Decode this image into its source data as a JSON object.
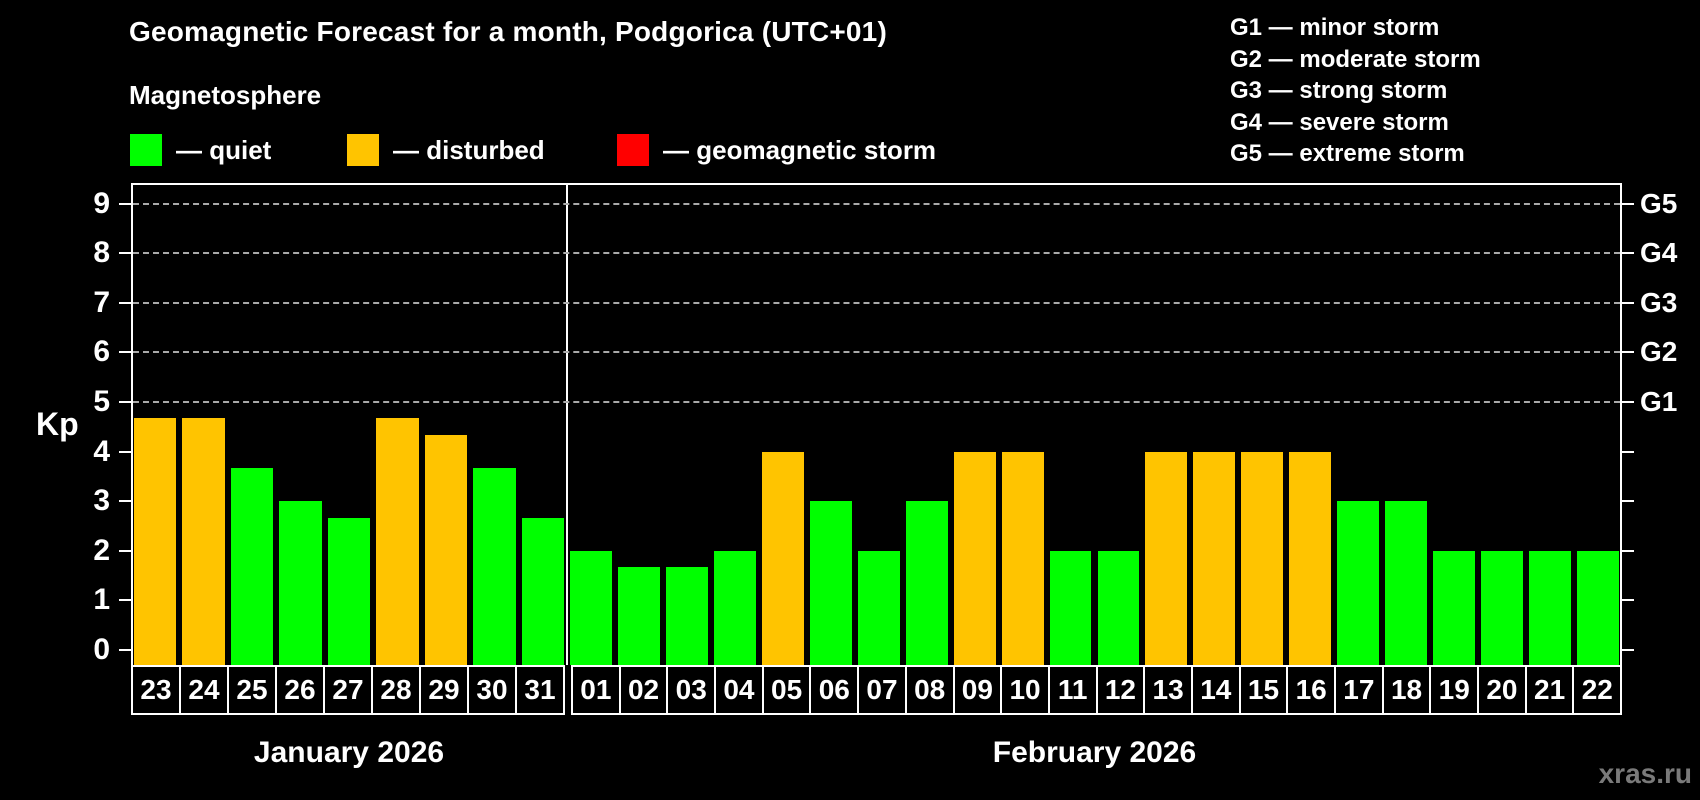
{
  "title": "Geomagnetic Forecast for a month, Podgorica (UTC+01)",
  "subtitle": "Magnetosphere",
  "legend": {
    "items": [
      {
        "name": "quiet",
        "label": "— quiet",
        "color": "#00FF00"
      },
      {
        "name": "disturbed",
        "label": "— disturbed",
        "color": "#FFC400"
      },
      {
        "name": "storm",
        "label": "— geomagnetic storm",
        "color": "#FF0000"
      }
    ]
  },
  "g_scale": {
    "items": [
      "G1 — minor storm",
      "G2 — moderate storm",
      "G3 — strong storm",
      "G4 — severe storm",
      "G5 — extreme storm"
    ]
  },
  "watermark": "xras.ru",
  "chart_data": {
    "type": "bar",
    "ylabel": "Kp",
    "ylim": [
      0,
      9.7
    ],
    "yticks": [
      0,
      1,
      2,
      3,
      4,
      5,
      6,
      7,
      8,
      9
    ],
    "grid_kp": [
      5,
      6,
      7,
      8,
      9
    ],
    "grid_on": true,
    "right_axis_labels": [
      {
        "kp": 5,
        "label": "G1"
      },
      {
        "kp": 6,
        "label": "G2"
      },
      {
        "kp": 7,
        "label": "G3"
      },
      {
        "kp": 8,
        "label": "G4"
      },
      {
        "kp": 9,
        "label": "G5"
      }
    ],
    "colors": {
      "quiet": "#00FF00",
      "disturbed": "#FFC400",
      "storm": "#FF0000"
    },
    "groups": [
      {
        "label": "January 2026",
        "days": [
          {
            "day": "23",
            "kp": 4.67,
            "status": "disturbed"
          },
          {
            "day": "24",
            "kp": 4.67,
            "status": "disturbed"
          },
          {
            "day": "25",
            "kp": 3.67,
            "status": "quiet"
          },
          {
            "day": "26",
            "kp": 3.0,
            "status": "quiet"
          },
          {
            "day": "27",
            "kp": 2.67,
            "status": "quiet"
          },
          {
            "day": "28",
            "kp": 4.67,
            "status": "disturbed"
          },
          {
            "day": "29",
            "kp": 4.33,
            "status": "disturbed"
          },
          {
            "day": "30",
            "kp": 3.67,
            "status": "quiet"
          },
          {
            "day": "31",
            "kp": 2.67,
            "status": "quiet"
          }
        ]
      },
      {
        "label": "February 2026",
        "days": [
          {
            "day": "01",
            "kp": 2.0,
            "status": "quiet"
          },
          {
            "day": "02",
            "kp": 1.67,
            "status": "quiet"
          },
          {
            "day": "03",
            "kp": 1.67,
            "status": "quiet"
          },
          {
            "day": "04",
            "kp": 2.0,
            "status": "quiet"
          },
          {
            "day": "05",
            "kp": 4.0,
            "status": "disturbed"
          },
          {
            "day": "06",
            "kp": 3.0,
            "status": "quiet"
          },
          {
            "day": "07",
            "kp": 2.0,
            "status": "quiet"
          },
          {
            "day": "08",
            "kp": 3.0,
            "status": "quiet"
          },
          {
            "day": "09",
            "kp": 4.0,
            "status": "disturbed"
          },
          {
            "day": "10",
            "kp": 4.0,
            "status": "disturbed"
          },
          {
            "day": "11",
            "kp": 2.0,
            "status": "quiet"
          },
          {
            "day": "12",
            "kp": 2.0,
            "status": "quiet"
          },
          {
            "day": "13",
            "kp": 4.0,
            "status": "disturbed"
          },
          {
            "day": "14",
            "kp": 4.0,
            "status": "disturbed"
          },
          {
            "day": "15",
            "kp": 4.0,
            "status": "disturbed"
          },
          {
            "day": "16",
            "kp": 4.0,
            "status": "disturbed"
          },
          {
            "day": "17",
            "kp": 3.0,
            "status": "quiet"
          },
          {
            "day": "18",
            "kp": 3.0,
            "status": "quiet"
          },
          {
            "day": "19",
            "kp": 2.0,
            "status": "quiet"
          },
          {
            "day": "20",
            "kp": 2.0,
            "status": "quiet"
          },
          {
            "day": "21",
            "kp": 2.0,
            "status": "quiet"
          },
          {
            "day": "22",
            "kp": 2.0,
            "status": "quiet"
          }
        ]
      }
    ]
  }
}
